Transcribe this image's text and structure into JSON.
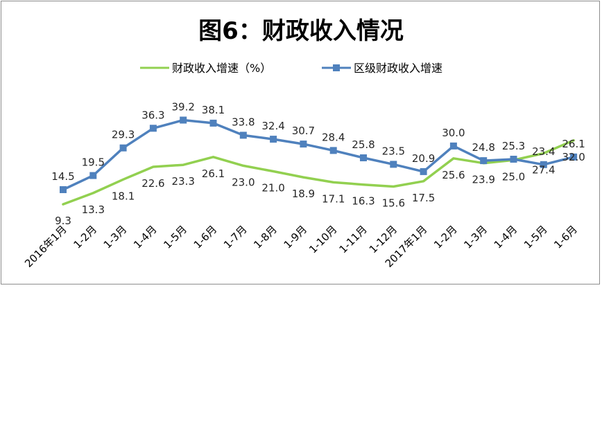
{
  "chart_data": {
    "type": "line",
    "title": "图6：财政收入情况",
    "categories": [
      "2016年1月",
      "1-2月",
      "1-3月",
      "1-4月",
      "1-5月",
      "1-6月",
      "1-7月",
      "1-8月",
      "1-9月",
      "1-10月",
      "1-11月",
      "1-12月",
      "2017年1月",
      "1-2月",
      "1-3月",
      "1-4月",
      "1-5月",
      "1-6月"
    ],
    "series": [
      {
        "name": "财政收入增速（%）",
        "color": "#92d050",
        "values": [
          9.3,
          13.3,
          18.1,
          22.6,
          23.3,
          26.1,
          23.0,
          21.0,
          18.9,
          17.1,
          16.3,
          15.6,
          17.5,
          25.6,
          23.9,
          25.0,
          27.4,
          32.0
        ]
      },
      {
        "name": "区级财政收入增速",
        "color": "#4f81bd",
        "values": [
          14.5,
          19.5,
          29.3,
          36.3,
          39.2,
          38.1,
          33.8,
          32.4,
          30.7,
          28.4,
          25.8,
          23.5,
          20.9,
          30.0,
          24.8,
          25.3,
          23.4,
          26.1
        ]
      }
    ],
    "legend_position": "top-center",
    "grid": false
  }
}
